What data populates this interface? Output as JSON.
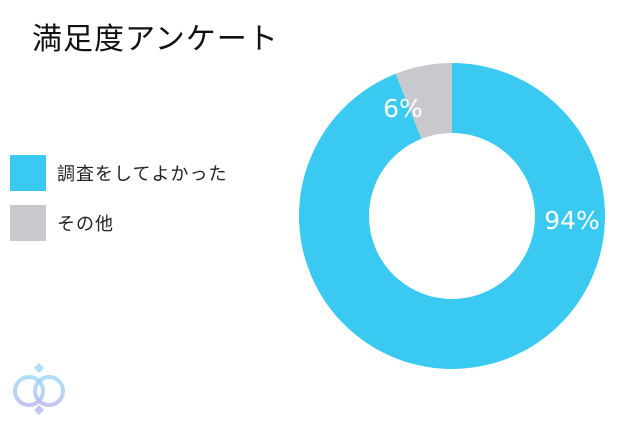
{
  "chart_data": {
    "type": "pie",
    "donut": true,
    "title": "満足度アンケート",
    "legend_position": "left",
    "slices": [
      {
        "label": "調査をしてよかった",
        "value": 94,
        "data_label": "94%",
        "color": "#3ac9f0"
      },
      {
        "label": "その他",
        "value": 6,
        "data_label": "6%",
        "color": "#c8c9cd"
      }
    ]
  },
  "logo": {
    "icon": "interlocking-rings-logo",
    "colors": [
      "#9ad8f5",
      "#b3b8ec"
    ]
  }
}
